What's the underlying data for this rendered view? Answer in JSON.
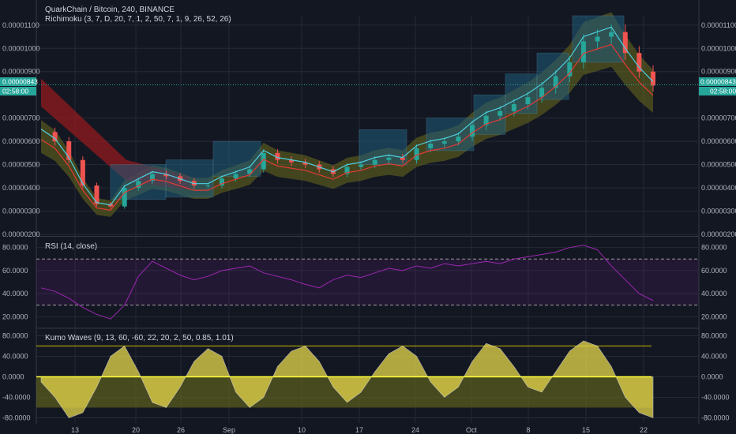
{
  "header": {
    "symbol_line": "QuarkChain / Bitcoin, 240, BINANCE",
    "indicator_line": "Richimoku (3, 7, D, 20, 7, 1, 2, 50, 7, 1, 9, 26, 52, 26)"
  },
  "panes": {
    "rsi_label": "RSI (14, close)",
    "kumo_label": "Kumo Waves (9, 13, 60, -60, 22, 20, 2, 50, 0.85, 1.01)"
  },
  "price_badge": {
    "value": "0.00000843",
    "countdown": "02:58:00"
  },
  "colors": {
    "background": "#131722",
    "grid": "#262a36",
    "candle_up": "#26a69a",
    "candle_down": "#ef5350",
    "cloud_bear": "#8b1a1f",
    "cloud_bull": "#6b6b1d",
    "box_fill": "#1f5c7a",
    "rsi": "#9c27b0",
    "kumo_fill": "#e6d74a",
    "price_badge": "#26a69a"
  },
  "chart_data": [
    {
      "type": "candlestick",
      "pane": "price",
      "yticks": [
        "0.00001100",
        "0.00001000",
        "0.00000900",
        "0.00000700",
        "0.00000600",
        "0.00000500",
        "0.00000400",
        "0.00000300",
        "0.00000200"
      ],
      "ylim": [
        2e-06,
        1.14e-05
      ],
      "last_price": 8.43e-06,
      "xticks": [
        "13",
        "20",
        "26",
        "Sep",
        "10",
        "17",
        "24",
        "Oct",
        "8",
        "15",
        "22"
      ],
      "close_series": [
        6.4e-06,
        6e-06,
        5.2e-06,
        4.1e-06,
        3.3e-06,
        3.2e-06,
        4e-06,
        4.3e-06,
        4.6e-06,
        4.5e-06,
        4.3e-06,
        4.1e-06,
        4.1e-06,
        4.4e-06,
        4.6e-06,
        4.8e-06,
        5.5e-06,
        5.2e-06,
        5.1e-06,
        5e-06,
        4.8e-06,
        4.6e-06,
        4.9e-06,
        5e-06,
        5.2e-06,
        5.3e-06,
        5.2e-06,
        5.7e-06,
        5.9e-06,
        6e-06,
        6.2e-06,
        6.7e-06,
        7.1e-06,
        7.3e-06,
        7.6e-06,
        7.9e-06,
        8.3e-06,
        8.8e-06,
        9.4e-06,
        1.03e-05,
        1.05e-05,
        1.07e-05,
        9.8e-06,
        9e-06,
        8.4e-06
      ]
    },
    {
      "type": "line",
      "pane": "rsi",
      "yticks": [
        "80.0000",
        "60.0000",
        "40.0000",
        "20.0000"
      ],
      "ylim": [
        12,
        88
      ],
      "bands": [
        30,
        70
      ],
      "series": [
        {
          "values": [
            45,
            42,
            36,
            28,
            22,
            18,
            30,
            55,
            68,
            62,
            56,
            52,
            55,
            60,
            62,
            64,
            58,
            55,
            52,
            48,
            45,
            52,
            56,
            54,
            58,
            62,
            60,
            64,
            62,
            66,
            64,
            66,
            68,
            66,
            70,
            72,
            74,
            76,
            80,
            82,
            78,
            64,
            52,
            40,
            34
          ]
        }
      ]
    },
    {
      "type": "area",
      "pane": "kumo_waves",
      "yticks": [
        "80.0000",
        "40.0000",
        "0.0000",
        "-40.0000",
        "-80.0000"
      ],
      "ylim": [
        -90,
        90
      ],
      "levels": [
        60,
        -60
      ],
      "series": [
        {
          "values": [
            -10,
            -40,
            -80,
            -70,
            -20,
            40,
            60,
            10,
            -50,
            -60,
            -20,
            30,
            55,
            40,
            -30,
            -60,
            -40,
            20,
            50,
            60,
            30,
            -20,
            -50,
            -30,
            10,
            45,
            60,
            40,
            -10,
            -40,
            -20,
            30,
            65,
            55,
            20,
            -20,
            -30,
            10,
            50,
            70,
            60,
            20,
            -40,
            -70,
            -80
          ]
        }
      ]
    }
  ]
}
